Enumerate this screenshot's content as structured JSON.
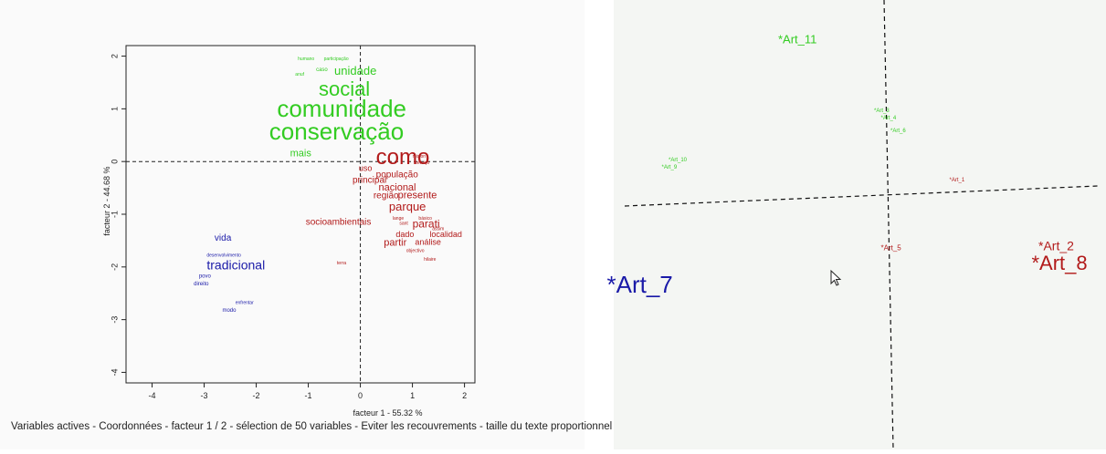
{
  "colors": {
    "green": "#33cc22",
    "red": "#b21a1a",
    "blue": "#1a1aa8",
    "axis": "#222222",
    "tick": "#222222"
  },
  "chart_data": [
    {
      "type": "scatter",
      "title": "",
      "xlabel": "facteur 1 - 55.32 %",
      "ylabel": "facteur 2 - 44.68 %",
      "xlim": [
        -4.5,
        2.2
      ],
      "ylim": [
        -4.2,
        2.2
      ],
      "xticks": [
        "-4",
        "-3",
        "-2",
        "-1",
        "0",
        "1",
        "2"
      ],
      "yticks": [
        "2",
        "1",
        "0",
        "-1",
        "-2",
        "-3",
        "-4"
      ],
      "caption": "Variables actives - Coordonnées - facteur 1 / 2 - sélection de 50 variables - Eviter les recouvrements - taille du texte proportionnel à la masse",
      "points": [
        {
          "label": "participação",
          "x": -0.7,
          "y": 1.92,
          "group": "green",
          "size": 5
        },
        {
          "label": "humano",
          "x": -1.2,
          "y": 1.92,
          "group": "green",
          "size": 5
        },
        {
          "label": "caso",
          "x": -0.85,
          "y": 1.72,
          "group": "green",
          "size": 6
        },
        {
          "label": "anuf",
          "x": -1.25,
          "y": 1.63,
          "group": "green",
          "size": 5
        },
        {
          "label": "unidade",
          "x": -0.5,
          "y": 1.65,
          "group": "green",
          "size": 13
        },
        {
          "label": "social",
          "x": -0.8,
          "y": 1.25,
          "group": "green",
          "size": 22
        },
        {
          "label": "comunidade",
          "x": -1.6,
          "y": 0.85,
          "group": "green",
          "size": 26
        },
        {
          "label": "conservação",
          "x": -1.75,
          "y": 0.42,
          "group": "green",
          "size": 26
        },
        {
          "label": "mais",
          "x": -1.35,
          "y": 0.1,
          "group": "green",
          "size": 11
        },
        {
          "label": "como",
          "x": 0.3,
          "y": -0.05,
          "group": "red",
          "size": 24
        },
        {
          "label": "mision",
          "x": 1.0,
          "y": 0.07,
          "group": "red",
          "size": 5
        },
        {
          "label": "serviço",
          "x": 1.05,
          "y": -0.05,
          "group": "red",
          "size": 5
        },
        {
          "label": "uso",
          "x": -0.03,
          "y": -0.18,
          "group": "red",
          "size": 9
        },
        {
          "label": "população",
          "x": 0.3,
          "y": -0.3,
          "group": "red",
          "size": 10
        },
        {
          "label": "principal",
          "x": -0.15,
          "y": -0.4,
          "group": "red",
          "size": 10
        },
        {
          "label": "nacional",
          "x": 0.35,
          "y": -0.55,
          "group": "red",
          "size": 11
        },
        {
          "label": "região",
          "x": 0.25,
          "y": -0.7,
          "group": "red",
          "size": 10
        },
        {
          "label": "presente",
          "x": 0.72,
          "y": -0.7,
          "group": "red",
          "size": 11
        },
        {
          "label": "parque",
          "x": 0.55,
          "y": -0.93,
          "group": "red",
          "size": 13
        },
        {
          "label": "básico",
          "x": 1.12,
          "y": -1.1,
          "group": "red",
          "size": 5
        },
        {
          "label": "lange",
          "x": 0.62,
          "y": -1.1,
          "group": "red",
          "size": 5
        },
        {
          "label": "sant",
          "x": 0.75,
          "y": -1.2,
          "group": "red",
          "size": 5
        },
        {
          "label": "socioambientais",
          "x": -1.05,
          "y": -1.2,
          "group": "red",
          "size": 10
        },
        {
          "label": "parati",
          "x": 1.0,
          "y": -1.25,
          "group": "red",
          "size": 12
        },
        {
          "label": "assim",
          "x": 1.38,
          "y": -1.3,
          "group": "red",
          "size": 5
        },
        {
          "label": "dado",
          "x": 0.68,
          "y": -1.43,
          "group": "red",
          "size": 9
        },
        {
          "label": "localidad",
          "x": 1.33,
          "y": -1.43,
          "group": "red",
          "size": 9
        },
        {
          "label": "análise",
          "x": 1.05,
          "y": -1.58,
          "group": "red",
          "size": 9
        },
        {
          "label": "partir",
          "x": 0.45,
          "y": -1.6,
          "group": "red",
          "size": 11
        },
        {
          "label": "objectivo",
          "x": 0.88,
          "y": -1.72,
          "group": "red",
          "size": 5
        },
        {
          "label": "terra",
          "x": -0.45,
          "y": -1.95,
          "group": "red",
          "size": 5
        },
        {
          "label": "hilaire",
          "x": 1.22,
          "y": -1.88,
          "group": "red",
          "size": 5
        },
        {
          "label": "vida",
          "x": -2.8,
          "y": -1.5,
          "group": "blue",
          "size": 10
        },
        {
          "label": "desenvolvimento",
          "x": -2.95,
          "y": -1.8,
          "group": "blue",
          "size": 5
        },
        {
          "label": "tradicional",
          "x": -2.95,
          "y": -2.05,
          "group": "blue",
          "size": 14
        },
        {
          "label": "povo",
          "x": -3.1,
          "y": -2.2,
          "group": "blue",
          "size": 6
        },
        {
          "label": "direito",
          "x": -3.2,
          "y": -2.35,
          "group": "blue",
          "size": 6
        },
        {
          "label": "enfrentar",
          "x": -2.4,
          "y": -2.7,
          "group": "blue",
          "size": 5
        },
        {
          "label": "modo",
          "x": -2.65,
          "y": -2.85,
          "group": "blue",
          "size": 6
        }
      ]
    },
    {
      "type": "scatter",
      "title": "",
      "xlabel": "",
      "ylabel": "",
      "points": [
        {
          "label": "*Art_11",
          "x": -0.8,
          "y": 1.55,
          "group": "green",
          "size": 13
        },
        {
          "label": "*Art_3",
          "x": -0.1,
          "y": 0.85,
          "group": "green",
          "size": 6
        },
        {
          "label": "*Art_4",
          "x": -0.05,
          "y": 0.78,
          "group": "green",
          "size": 6
        },
        {
          "label": "*Art_6",
          "x": 0.02,
          "y": 0.65,
          "group": "green",
          "size": 6
        },
        {
          "label": "*Art_10",
          "x": -1.6,
          "y": 0.35,
          "group": "green",
          "size": 6
        },
        {
          "label": "*Art_9",
          "x": -1.65,
          "y": 0.28,
          "group": "green",
          "size": 6
        },
        {
          "label": "*Art_1",
          "x": 0.45,
          "y": 0.15,
          "group": "red",
          "size": 6
        },
        {
          "label": "*Art_5",
          "x": -0.05,
          "y": -0.55,
          "group": "red",
          "size": 8
        },
        {
          "label": "*Art_2",
          "x": 1.1,
          "y": -0.55,
          "group": "red",
          "size": 14
        },
        {
          "label": "*Art_8",
          "x": 1.05,
          "y": -0.75,
          "group": "red",
          "size": 22
        },
        {
          "label": "*Art_7",
          "x": -2.05,
          "y": -0.98,
          "group": "blue",
          "size": 26
        }
      ]
    }
  ]
}
